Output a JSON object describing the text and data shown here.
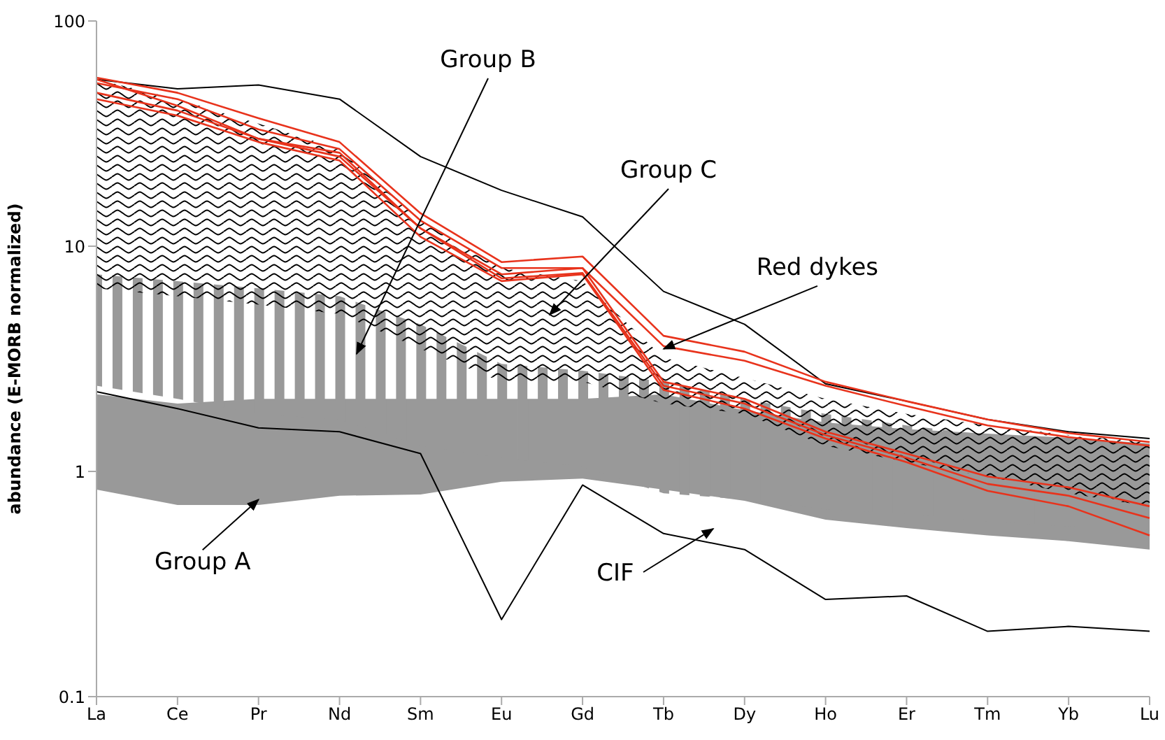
{
  "chart_data": {
    "type": "area",
    "ylabel": "abundance (E-MORB normalized)",
    "categories": [
      "La",
      "Ce",
      "Pr",
      "Nd",
      "Sm",
      "Eu",
      "Gd",
      "Tb",
      "Dy",
      "Ho",
      "Er",
      "Tm",
      "Yb",
      "Lu"
    ],
    "series": [
      {
        "color": "#999999",
        "values": [
          null,
          null,
          null,
          null,
          null,
          null,
          null,
          null,
          null,
          null,
          null,
          null,
          null,
          null
        ],
        "lower": [
          0.83,
          0.71,
          0.71,
          0.78,
          0.79,
          0.9,
          0.93,
          0.83,
          0.74,
          0.61,
          0.56,
          0.52,
          0.49,
          0.45
        ],
        "upper": [
          2.2,
          2.0,
          2.1,
          2.1,
          2.1,
          2.1,
          2.1,
          2.2,
          1.87,
          1.65,
          1.54,
          1.47,
          1.41,
          1.33
        ]
      },
      {
        "color": "#999999",
        "values": [
          null,
          null,
          null,
          null,
          null,
          null,
          null,
          null,
          null,
          null,
          null,
          null,
          null,
          null
        ],
        "lower": [
          2.4,
          2.1,
          1.8,
          1.7,
          1.3,
          1.15,
          1.05,
          0.8,
          0.75,
          0.68,
          0.65,
          0.6,
          0.57,
          0.55
        ],
        "upper": [
          7.5,
          7,
          6.5,
          6,
          4.5,
          3,
          2.8,
          2.5,
          2.1,
          1.8,
          1.6,
          1.45,
          1.35,
          1.3
        ]
      },
      {
        "color": "#000000",
        "values": [
          null,
          null,
          null,
          null,
          null,
          null,
          null,
          null,
          null,
          null,
          null,
          null,
          null,
          null
        ],
        "lower": [
          6.5,
          6,
          5.5,
          5,
          3.5,
          2.5,
          2.5,
          2,
          1.8,
          1.3,
          1.1,
          0.95,
          0.8,
          0.7
        ],
        "upper": [
          55,
          45,
          35,
          27,
          13,
          8,
          7,
          3.2,
          2.6,
          2.1,
          1.8,
          1.6,
          1.45,
          1.35
        ]
      },
      {
        "type": "line",
        "color": "#000000",
        "values": [
          55,
          50,
          52,
          45,
          25,
          17.7,
          13.5,
          6.3,
          4.5,
          2.45,
          2.05,
          1.7,
          1.5,
          1.4
        ]
      },
      {
        "type": "line",
        "color": "#000000",
        "values": [
          2.26,
          1.9,
          1.56,
          1.5,
          1.2,
          0.22,
          0.87,
          0.53,
          0.45,
          0.27,
          0.28,
          0.195,
          0.205,
          0.195
        ]
      },
      {
        "type": "line",
        "color": "#e8331c",
        "values": [
          56,
          48,
          37,
          29,
          14,
          8.5,
          9,
          4,
          3.4,
          2.5,
          2.05,
          1.7,
          1.48,
          1.35
        ]
      },
      {
        "type": "line",
        "color": "#e8331c",
        "values": [
          53,
          45,
          33,
          27,
          13,
          8,
          8,
          3.6,
          3.1,
          2.4,
          1.95,
          1.6,
          1.42,
          1.3
        ]
      },
      {
        "type": "line",
        "color": "#e8331c",
        "values": [
          55,
          42,
          30,
          26,
          12,
          7.5,
          8,
          2.5,
          2.1,
          1.5,
          1.2,
          0.95,
          0.85,
          0.7
        ]
      },
      {
        "type": "line",
        "color": "#e8331c",
        "values": [
          48,
          40,
          30,
          25,
          12,
          7.2,
          7.6,
          2.4,
          2,
          1.45,
          1.15,
          0.88,
          0.78,
          0.62
        ]
      },
      {
        "type": "line",
        "color": "#e8331c",
        "values": [
          45,
          38,
          29,
          24,
          11,
          7,
          7.5,
          2.3,
          1.9,
          1.4,
          1.1,
          0.82,
          0.7,
          0.52
        ]
      }
    ],
    "ylim": [
      0.1,
      100
    ],
    "yticks": [
      0.1,
      1,
      10,
      100
    ],
    "log": true,
    "grid": false,
    "legend": false,
    "marker": "none",
    "annotations": [
      {
        "text": "Group A",
        "x": "Pr",
        "y": 0.75
      },
      "Group B",
      "Group C",
      "CIF",
      {
        "text": "Red dykes",
        "x": "Tb",
        "y": 3.5
      }
    ]
  }
}
